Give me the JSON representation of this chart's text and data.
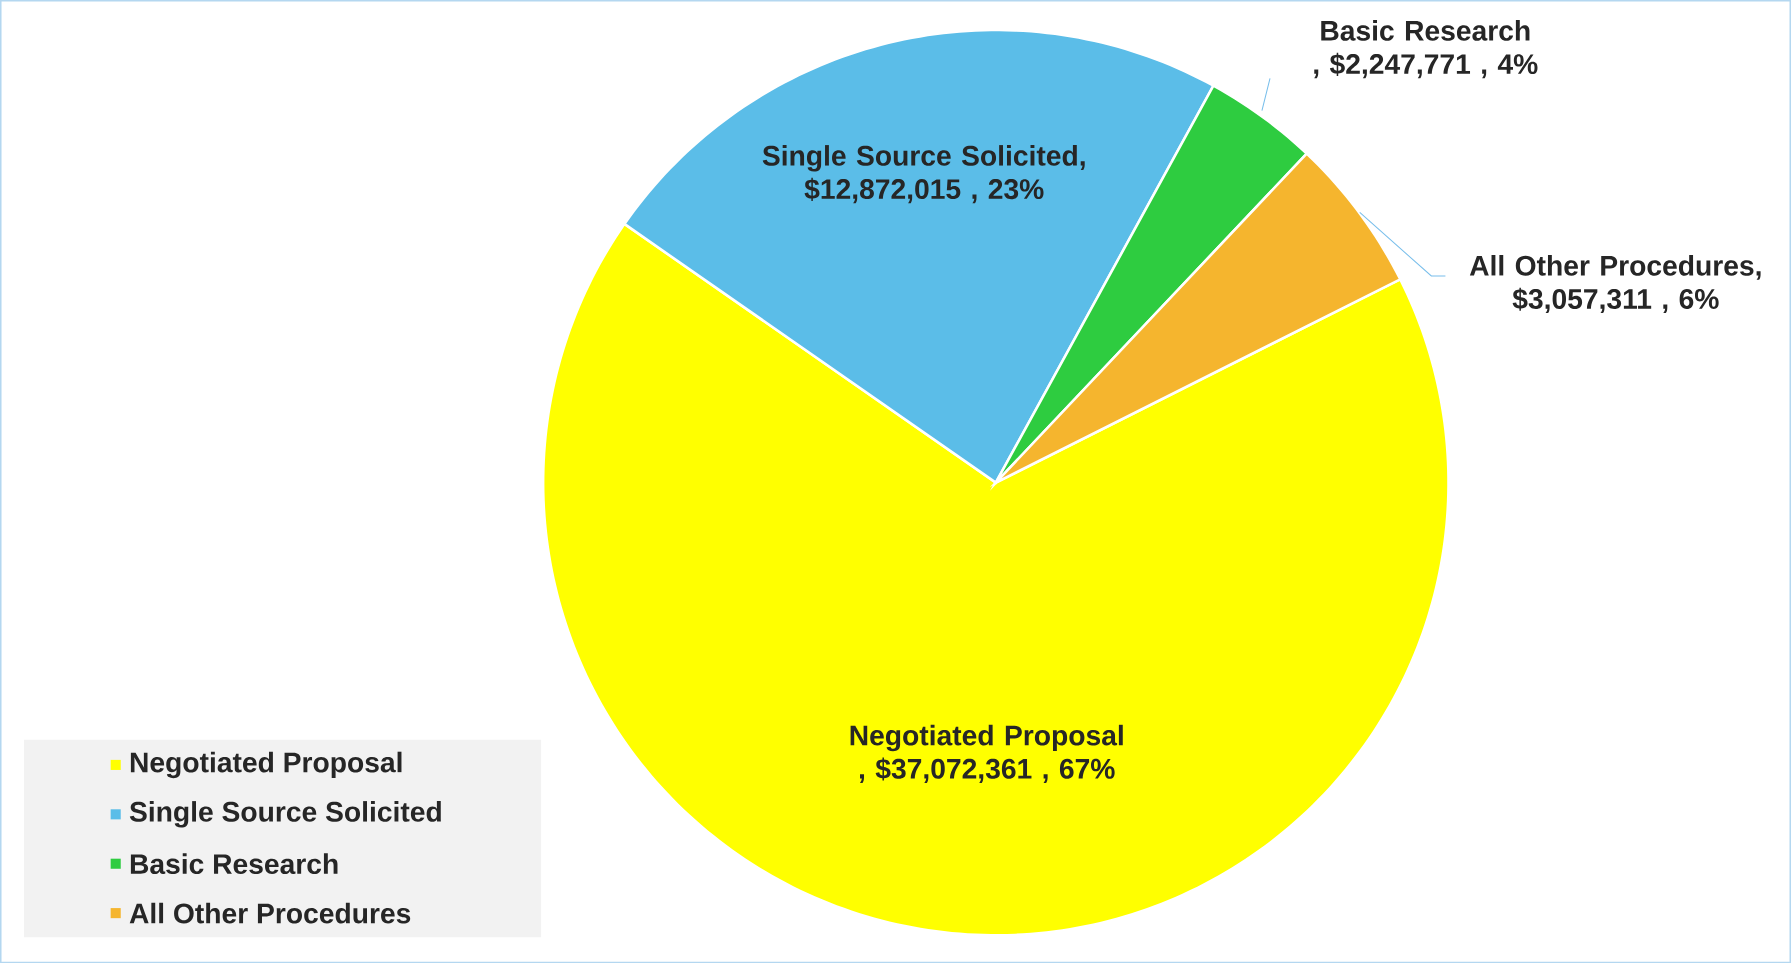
{
  "chart_data": {
    "type": "pie",
    "categories": [
      "Negotiated Proposal",
      "Single Source Solicited",
      "Basic Research",
      "All Other Procedures"
    ],
    "values": [
      37072361,
      12872015,
      2247771,
      3057311
    ],
    "colors": [
      "#ffff00",
      "#5bbde8",
      "#2ecc40",
      "#f5b52e"
    ],
    "value_labels": [
      "Negotiated Proposal , $37,072,361 , 67%",
      "Single Source Solicited, $12,872,015 , 23%",
      "Basic Research , $2,247,771 , 4%",
      "All Other Procedures, $3,057,311 , 6%"
    ],
    "legend": "bottom left"
  }
}
